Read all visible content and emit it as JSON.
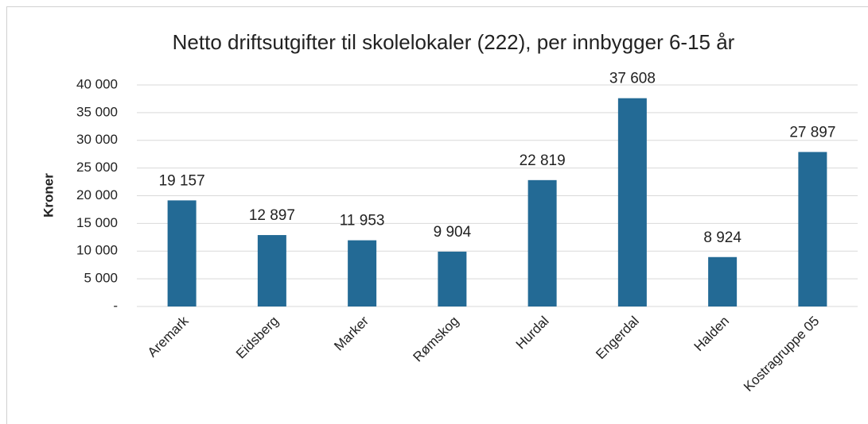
{
  "chart_data": {
    "type": "bar",
    "title": "Netto driftsutgifter til skolelokaler  (222), per innbygger 6-15 år",
    "y_label": "Kroner",
    "categories": [
      "Aremark",
      "Eidsberg",
      "Marker",
      "Rømskog",
      "Hurdal",
      "Engerdal",
      "Halden",
      "Kostragruppe 05"
    ],
    "values": [
      19157,
      12897,
      11953,
      9904,
      22819,
      37608,
      8924,
      27897
    ],
    "value_labels": [
      "19 157",
      "12 897",
      "11 953",
      "9 904",
      "22 819",
      "37 608",
      "8 924",
      "27 897"
    ],
    "color": "#236a95",
    "ylim": [
      0,
      40000
    ],
    "yticks": [
      {
        "value": 0,
        "label": "-"
      },
      {
        "value": 5000,
        "label": "5 000"
      },
      {
        "value": 10000,
        "label": "10 000"
      },
      {
        "value": 15000,
        "label": "15 000"
      },
      {
        "value": 20000,
        "label": "20 000"
      },
      {
        "value": 25000,
        "label": "25 000"
      },
      {
        "value": 30000,
        "label": "30 000"
      },
      {
        "value": 35000,
        "label": "35 000"
      },
      {
        "value": 40000,
        "label": "40 000"
      }
    ],
    "grid": true
  }
}
